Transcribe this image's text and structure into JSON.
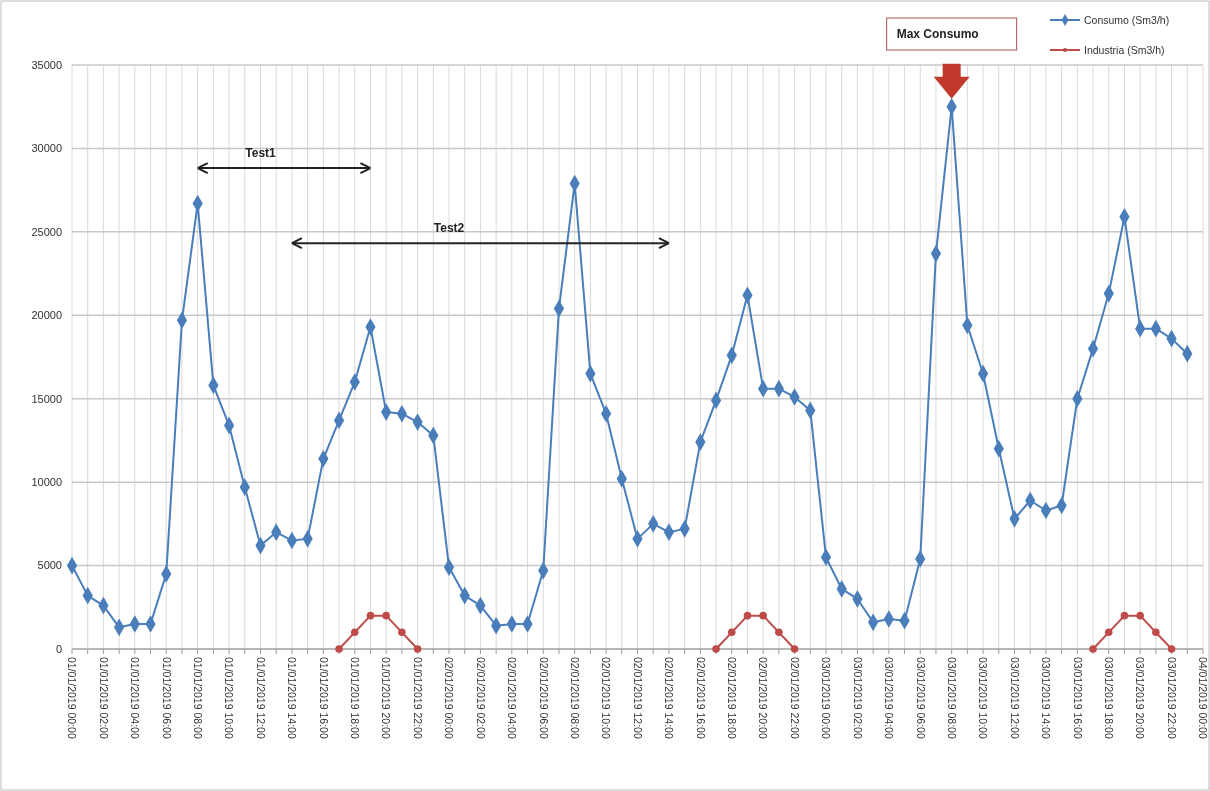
{
  "chart_data": {
    "type": "line",
    "categories": [
      "01/01/2019 00:00",
      null,
      "01/01/2019 02:00",
      null,
      "01/01/2019 04:00",
      null,
      "01/01/2019 06:00",
      null,
      "01/01/2019 08:00",
      null,
      "01/01/2019 10:00",
      null,
      "01/01/2019 12:00",
      null,
      "01/01/2019 14:00",
      null,
      "01/01/2019 16:00",
      null,
      "01/01/2019 18:00",
      null,
      "01/01/2019 20:00",
      null,
      "01/01/2019 22:00",
      null,
      "02/01/2019 00:00",
      null,
      "02/01/2019 02:00",
      null,
      "02/01/2019 04:00",
      null,
      "02/01/2019 06:00",
      null,
      "02/01/2019 08:00",
      null,
      "02/01/2019 10:00",
      null,
      "02/01/2019 12:00",
      null,
      "02/01/2019 14:00",
      null,
      "02/01/2019 16:00",
      null,
      "02/01/2019 18:00",
      null,
      "02/01/2019 20:00",
      null,
      "02/01/2019 22:00",
      null,
      "03/01/2019 00:00",
      null,
      "03/01/2019 02:00",
      null,
      "03/01/2019 04:00",
      null,
      "03/01/2019 06:00",
      null,
      "03/01/2019 08:00",
      null,
      "03/01/2019 10:00",
      null,
      "03/01/2019 12:00",
      null,
      "03/01/2019 14:00",
      null,
      "03/01/2019 16:00",
      null,
      "03/01/2019 18:00",
      null,
      "03/01/2019 20:00",
      null,
      "03/01/2019 22:00",
      null,
      "04/01/2019 00:00"
    ],
    "series": [
      {
        "name": "Consumo (Sm3/h)",
        "color": "#4a7ebb",
        "marker": "diamond",
        "values": [
          5000,
          3200,
          2600,
          1300,
          1500,
          1500,
          4500,
          19700,
          26700,
          15800,
          13400,
          9700,
          6200,
          7000,
          6500,
          6600,
          11400,
          13700,
          16000,
          19300,
          14200,
          14100,
          13600,
          12800,
          4900,
          3200,
          2600,
          1400,
          1500,
          1500,
          4700,
          20400,
          27900,
          16500,
          14100,
          10200,
          6600,
          7500,
          7000,
          7200,
          12400,
          14900,
          17600,
          21200,
          15600,
          15600,
          15100,
          14300,
          5500,
          3600,
          3000,
          1600,
          1800,
          1700,
          5400,
          23700,
          32500,
          19400,
          16500,
          12000,
          7800,
          8900,
          8300,
          8600,
          15000,
          18000,
          21300,
          25900,
          19200,
          19200,
          18600,
          17700,
          null
        ]
      },
      {
        "name": "Industria (Sm3/h)",
        "color": "#be4b48",
        "marker": "circle",
        "values": [
          null,
          null,
          null,
          null,
          null,
          null,
          null,
          null,
          null,
          null,
          null,
          null,
          null,
          null,
          null,
          null,
          null,
          0,
          1000,
          2000,
          2000,
          1000,
          0,
          null,
          null,
          null,
          null,
          null,
          null,
          null,
          null,
          null,
          null,
          null,
          null,
          null,
          null,
          null,
          null,
          null,
          null,
          0,
          1000,
          2000,
          2000,
          1000,
          0,
          null,
          null,
          null,
          null,
          null,
          null,
          null,
          null,
          null,
          null,
          null,
          null,
          null,
          null,
          null,
          null,
          null,
          null,
          0,
          1000,
          2000,
          2000,
          1000,
          0,
          null,
          null
        ]
      }
    ],
    "ylim": [
      0,
      35000
    ],
    "yticks": [
      0,
      5000,
      10000,
      15000,
      20000,
      25000,
      30000,
      35000
    ],
    "grid": true,
    "legend": "top right",
    "line_style": "solid",
    "annotations": [
      "Test1",
      "Test2",
      "Max Consumo"
    ]
  }
}
